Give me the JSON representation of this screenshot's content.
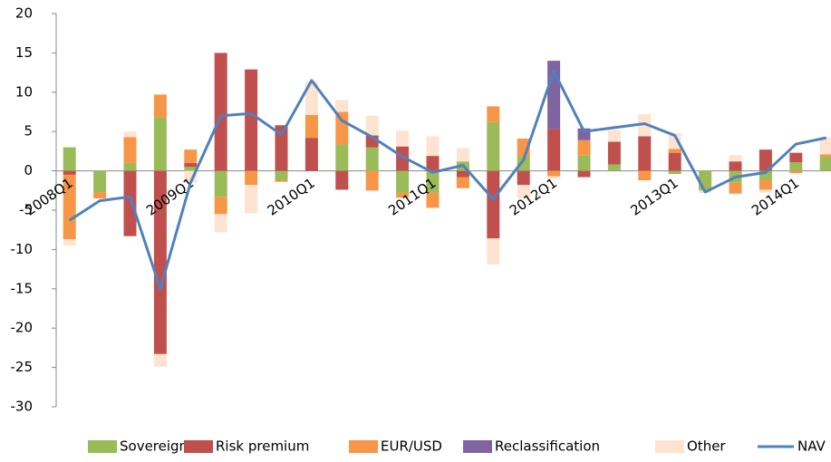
{
  "chart_data": {
    "type": "bar",
    "stacked": true,
    "categories": [
      "2008Q1",
      null,
      null,
      null,
      "2009Q1",
      null,
      null,
      null,
      "2010Q1",
      null,
      null,
      null,
      "2011Q1",
      null,
      null,
      null,
      "2012Q1",
      null,
      null,
      null,
      "2013Q1",
      null,
      null,
      null,
      "2014Q1",
      null
    ],
    "series": [
      {
        "name": "Sovereign",
        "color": "#9bbb59",
        "values": [
          3,
          -2.7,
          1,
          6.8,
          0.5,
          -3.3,
          0,
          -1.2,
          0,
          3.4,
          3,
          -2.8,
          -2.8,
          1.2,
          6.2,
          1.8,
          0,
          2,
          0.8,
          0,
          -0.4,
          -2.5,
          -1.5,
          -1.2,
          1.1,
          1.8
        ]
      },
      {
        "name": "Risk premium",
        "color": "#c0504d",
        "values": [
          -0.5,
          0,
          -8.3,
          -23.3,
          0.5,
          15,
          12.9,
          5.8,
          4.2,
          -2.4,
          1.5,
          3.1,
          1.9,
          -0.8,
          -8.6,
          -1.8,
          5.3,
          -0.8,
          2.9,
          4.4,
          2.3,
          0,
          1.2,
          2.7,
          1.2,
          0
        ]
      },
      {
        "name": "EUR/USD",
        "color": "#f79646",
        "values": [
          -8.2,
          -0.8,
          3.3,
          2.9,
          1.7,
          -2.2,
          -1.8,
          -0.2,
          2.9,
          4.1,
          -2.5,
          -0.6,
          -1.9,
          -1.4,
          2,
          2.3,
          -0.7,
          1.9,
          0,
          -1.2,
          0.5,
          0,
          -1.4,
          -1.2,
          -0.3,
          0.3
        ]
      },
      {
        "name": "Reclassification",
        "color": "#8064a2",
        "values": [
          0,
          0,
          0,
          0,
          0,
          0,
          0,
          0,
          0,
          0,
          0,
          0,
          0,
          0,
          0,
          0,
          8.7,
          1.5,
          0,
          0,
          0,
          0,
          0,
          0,
          0,
          0
        ]
      },
      {
        "name": "Other",
        "color": "#fde3d0",
        "values": [
          -0.8,
          0,
          0.7,
          -1.6,
          -1.5,
          -2.3,
          -3.6,
          0,
          4.3,
          1.5,
          2.5,
          2,
          2.5,
          1.7,
          -3.3,
          -1.7,
          -0.3,
          0,
          1.5,
          2.8,
          2,
          -0.3,
          0.8,
          -0.4,
          0,
          2.2
        ]
      }
    ],
    "line": {
      "name": "NAV",
      "color": "#4f81bd",
      "values": [
        -6.3,
        -3.8,
        -3.3,
        -15,
        -1.5,
        7,
        7.3,
        4.6,
        11.5,
        6.4,
        4.3,
        1.8,
        -0.2,
        0.7,
        -3.6,
        1.4,
        12.7,
        5,
        5.5,
        6,
        4.5,
        -2.7,
        -0.8,
        -0.2,
        3.4,
        4.2
      ]
    },
    "ylim": [
      -30,
      20
    ],
    "yticks": [
      -30,
      -25,
      -20,
      -15,
      -10,
      -5,
      0,
      5,
      10,
      15,
      20
    ]
  }
}
